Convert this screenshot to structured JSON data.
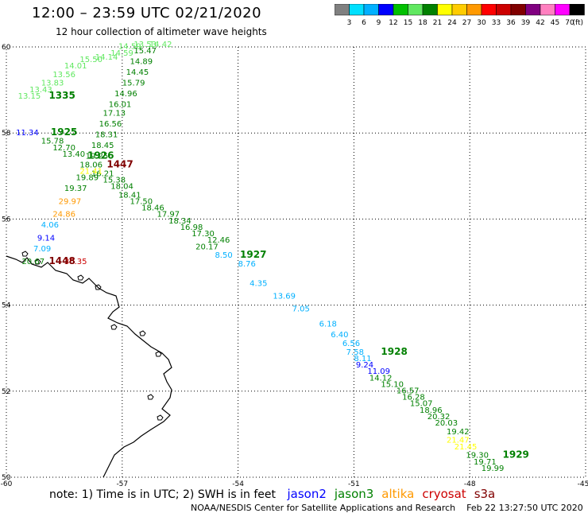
{
  "header": {
    "title": "12:00 – 23:59 UTC 02/21/2020",
    "subtitle": "12 hour collection of altimeter wave heights"
  },
  "colorbar": {
    "labels": [
      "3",
      "6",
      "9",
      "12",
      "15",
      "18",
      "21",
      "24",
      "27",
      "30",
      "33",
      "36",
      "39",
      "42",
      "45",
      "70"
    ],
    "unit": "(ft)",
    "colors": [
      "#808080",
      "#00e0ff",
      "#00b0ff",
      "#0000ff",
      "#00c000",
      "#60e860",
      "#008000",
      "#ffff00",
      "#ffcc00",
      "#ff9900",
      "#ff0000",
      "#cc0000",
      "#800000",
      "#800080",
      "#ff80c0",
      "#ff00ff",
      "#000000"
    ]
  },
  "map": {
    "lon_range": [
      -60,
      -45
    ],
    "lat_range": [
      50,
      60
    ],
    "lon_ticks": [
      "-60",
      "-57",
      "-54",
      "-51",
      "-48",
      "-45"
    ],
    "lat_ticks": [
      "60",
      "58",
      "56",
      "54",
      "52",
      "50"
    ],
    "tracks": [
      {
        "color": "#60e860",
        "points": [
          {
            "t": "13.15",
            "lon": -59.7,
            "lat": 58.8
          },
          {
            "t": "13.43",
            "lon": -59.4,
            "lat": 58.95
          },
          {
            "t": "13.83",
            "lon": -59.1,
            "lat": 59.1
          },
          {
            "t": "13.56",
            "lon": -58.8,
            "lat": 59.3
          },
          {
            "t": "14.01",
            "lon": -58.5,
            "lat": 59.5
          },
          {
            "t": "15.50",
            "lon": -58.1,
            "lat": 59.65
          },
          {
            "t": "14.14",
            "lon": -57.7,
            "lat": 59.7
          },
          {
            "t": "14.59",
            "lon": -57.3,
            "lat": 59.8
          },
          {
            "t": "14.59",
            "lon": -57.1,
            "lat": 59.95
          },
          {
            "t": "13.53",
            "lon": -56.7,
            "lat": 60.0
          },
          {
            "t": "14.42",
            "lon": -56.3,
            "lat": 60.0
          }
        ]
      },
      {
        "color": "#008000",
        "points": [
          {
            "t": "15.47",
            "lon": -56.7,
            "lat": 59.85
          },
          {
            "t": "14.89",
            "lon": -56.8,
            "lat": 59.6
          },
          {
            "t": "14.45",
            "lon": -56.9,
            "lat": 59.35
          },
          {
            "t": "15.79",
            "lon": -57.0,
            "lat": 59.1
          },
          {
            "t": "14.96",
            "lon": -57.2,
            "lat": 58.85
          },
          {
            "t": "16.01",
            "lon": -57.35,
            "lat": 58.6
          },
          {
            "t": "17.13",
            "lon": -57.5,
            "lat": 58.4
          },
          {
            "t": "16.56",
            "lon": -57.6,
            "lat": 58.15
          },
          {
            "t": "18.31",
            "lon": -57.7,
            "lat": 57.9
          },
          {
            "t": "18.45",
            "lon": -57.8,
            "lat": 57.65
          },
          {
            "t": "19.25",
            "lon": -57.95,
            "lat": 57.4
          },
          {
            "t": "18.06",
            "lon": -58.1,
            "lat": 57.2
          },
          {
            "t": "16.21",
            "lon": -57.8,
            "lat": 57.0
          },
          {
            "t": "15.38",
            "lon": -57.5,
            "lat": 56.85
          },
          {
            "t": "18.04",
            "lon": -57.3,
            "lat": 56.7
          },
          {
            "t": "18.41",
            "lon": -57.1,
            "lat": 56.5
          },
          {
            "t": "17.50",
            "lon": -56.8,
            "lat": 56.35
          },
          {
            "t": "18.46",
            "lon": -56.5,
            "lat": 56.2
          },
          {
            "t": "17.97",
            "lon": -56.1,
            "lat": 56.05
          },
          {
            "t": "18.34",
            "lon": -55.8,
            "lat": 55.9
          },
          {
            "t": "16.98",
            "lon": -55.5,
            "lat": 55.75
          },
          {
            "t": "17.30",
            "lon": -55.2,
            "lat": 55.6
          },
          {
            "t": "12.46",
            "lon": -54.8,
            "lat": 55.45
          },
          {
            "t": "20.17",
            "lon": -55.1,
            "lat": 55.3
          }
        ]
      },
      {
        "color": "#00b0ff",
        "points": [
          {
            "t": "8.50",
            "lon": -54.6,
            "lat": 55.1
          },
          {
            "t": "8.76",
            "lon": -54.0,
            "lat": 54.9
          },
          {
            "t": "4.35",
            "lon": -53.7,
            "lat": 54.45
          },
          {
            "t": "13.69",
            "lon": -53.1,
            "lat": 54.15
          },
          {
            "t": "7.05",
            "lon": -52.6,
            "lat": 53.85
          },
          {
            "t": "6.18",
            "lon": -51.9,
            "lat": 53.5
          },
          {
            "t": "6.40",
            "lon": -51.6,
            "lat": 53.25
          },
          {
            "t": "6.56",
            "lon": -51.3,
            "lat": 53.05
          },
          {
            "t": "7.58",
            "lon": -51.2,
            "lat": 52.85
          },
          {
            "t": "8.11",
            "lon": -51.0,
            "lat": 52.7
          }
        ]
      },
      {
        "color": "#0000ff",
        "points": [
          {
            "t": "9.24",
            "lon": -50.95,
            "lat": 52.55
          },
          {
            "t": "11.09",
            "lon": -50.65,
            "lat": 52.4
          }
        ]
      },
      {
        "color": "#008000",
        "points": [
          {
            "t": "14.12",
            "lon": -50.6,
            "lat": 52.25
          },
          {
            "t": "15.10",
            "lon": -50.3,
            "lat": 52.1
          },
          {
            "t": "16.57",
            "lon": -49.9,
            "lat": 51.95
          },
          {
            "t": "16.28",
            "lon": -49.75,
            "lat": 51.8
          },
          {
            "t": "15.07",
            "lon": -49.55,
            "lat": 51.65
          },
          {
            "t": "18.96",
            "lon": -49.3,
            "lat": 51.5
          },
          {
            "t": "20.32",
            "lon": -49.1,
            "lat": 51.35
          },
          {
            "t": "20.03",
            "lon": -48.9,
            "lat": 51.2
          },
          {
            "t": "19.42",
            "lon": -48.6,
            "lat": 51.0
          }
        ]
      },
      {
        "color": "#ffff00",
        "points": [
          {
            "t": "21.47",
            "lon": -48.6,
            "lat": 50.8
          },
          {
            "t": "21.45",
            "lon": -48.4,
            "lat": 50.65
          }
        ]
      },
      {
        "color": "#008000",
        "points": [
          {
            "t": "19.30",
            "lon": -48.1,
            "lat": 50.45
          },
          {
            "t": "19.71",
            "lon": -47.9,
            "lat": 50.3
          },
          {
            "t": "19.99",
            "lon": -47.7,
            "lat": 50.15
          }
        ]
      },
      {
        "color": "#0000ff",
        "points": [
          {
            "t": "11.34",
            "lon": -59.75,
            "lat": 57.95
          }
        ]
      },
      {
        "color": "#008000",
        "points": [
          {
            "t": "15.78",
            "lon": -59.1,
            "lat": 57.75
          },
          {
            "t": "12.70",
            "lon": -58.8,
            "lat": 57.6
          },
          {
            "t": "13.40",
            "lon": -58.55,
            "lat": 57.45
          },
          {
            "t": "19.89",
            "lon": -58.2,
            "lat": 56.9
          },
          {
            "t": "19.37",
            "lon": -58.5,
            "lat": 56.65
          }
        ]
      },
      {
        "color": "#ffff00",
        "points": [
          {
            "t": "21.41",
            "lon": -58.1,
            "lat": 57.05
          }
        ]
      },
      {
        "color": "#ff9900",
        "points": [
          {
            "t": "29.97",
            "lon": -58.65,
            "lat": 56.35
          },
          {
            "t": "24.86",
            "lon": -58.8,
            "lat": 56.05
          }
        ]
      },
      {
        "color": "#00b0ff",
        "points": [
          {
            "t": "4.06",
            "lon": -59.1,
            "lat": 55.8
          },
          {
            "t": "7.09",
            "lon": -59.3,
            "lat": 55.25
          }
        ]
      },
      {
        "color": "#0000ff",
        "points": [
          {
            "t": "9.14",
            "lon": -59.2,
            "lat": 55.5
          }
        ]
      },
      {
        "color": "#008000",
        "points": [
          {
            "t": "20.67",
            "lon": -59.6,
            "lat": 54.95
          }
        ]
      },
      {
        "color": "#cc0000",
        "points": [
          {
            "t": "30.35",
            "lon": -58.5,
            "lat": 54.95
          }
        ]
      }
    ],
    "time_labels": [
      {
        "t": "1335",
        "lon": -58.9,
        "lat": 58.8,
        "color": "#008000"
      },
      {
        "t": "1925",
        "lon": -58.85,
        "lat": 57.95,
        "color": "#008000"
      },
      {
        "t": "1926",
        "lon": -57.9,
        "lat": 57.4,
        "color": "#008000"
      },
      {
        "t": "1447",
        "lon": -57.4,
        "lat": 57.2,
        "color": "#800000"
      },
      {
        "t": "1927",
        "lon": -53.95,
        "lat": 55.1,
        "color": "#008000"
      },
      {
        "t": "1928",
        "lon": -50.3,
        "lat": 52.85,
        "color": "#008000"
      },
      {
        "t": "1929",
        "lon": -47.15,
        "lat": 50.45,
        "color": "#008000"
      },
      {
        "t": "1448",
        "lon": -58.9,
        "lat": 54.95,
        "color": "#800000"
      }
    ]
  },
  "note": {
    "text": "note: 1) Time is in UTC; 2) SWH is in feet",
    "missions": [
      {
        "name": "jason2",
        "color": "#0000ff"
      },
      {
        "name": "jason3",
        "color": "#008000"
      },
      {
        "name": "altika",
        "color": "#ff9900"
      },
      {
        "name": "cryosat",
        "color": "#cc0000"
      },
      {
        "name": "s3a",
        "color": "#800000"
      }
    ]
  },
  "footer": {
    "credit": "NOAA/NESDIS Center for Satellite Applications and Research",
    "timestamp": "Feb 22 13:27:50 UTC 2020"
  }
}
